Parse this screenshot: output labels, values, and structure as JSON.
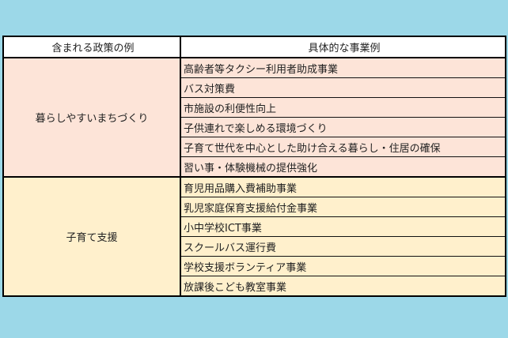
{
  "header": {
    "col1": "含まれる政策の例",
    "col2": "具体的な事業例"
  },
  "groups": [
    {
      "policy": "暮らしやすいまちづくり",
      "color": "#fde4d8",
      "items": [
        "高齢者等タクシー利用者助成事業",
        "バス対策費",
        "市施設の利便性向上",
        "子供連れで楽しめる環境づくり",
        "子育て世代を中心とした助け合える暮らし・住居の確保",
        "習い事・体験機械の提供強化"
      ]
    },
    {
      "policy": "子育て支援",
      "color": "#fff0cc",
      "items": [
        "育児用品購入費補助事業",
        "乳児家庭保育支援給付金事業",
        "小中学校ICT事業",
        "スクールバス運行費",
        "学校支援ボランティア事業",
        "放課後こども教室事業"
      ]
    }
  ]
}
